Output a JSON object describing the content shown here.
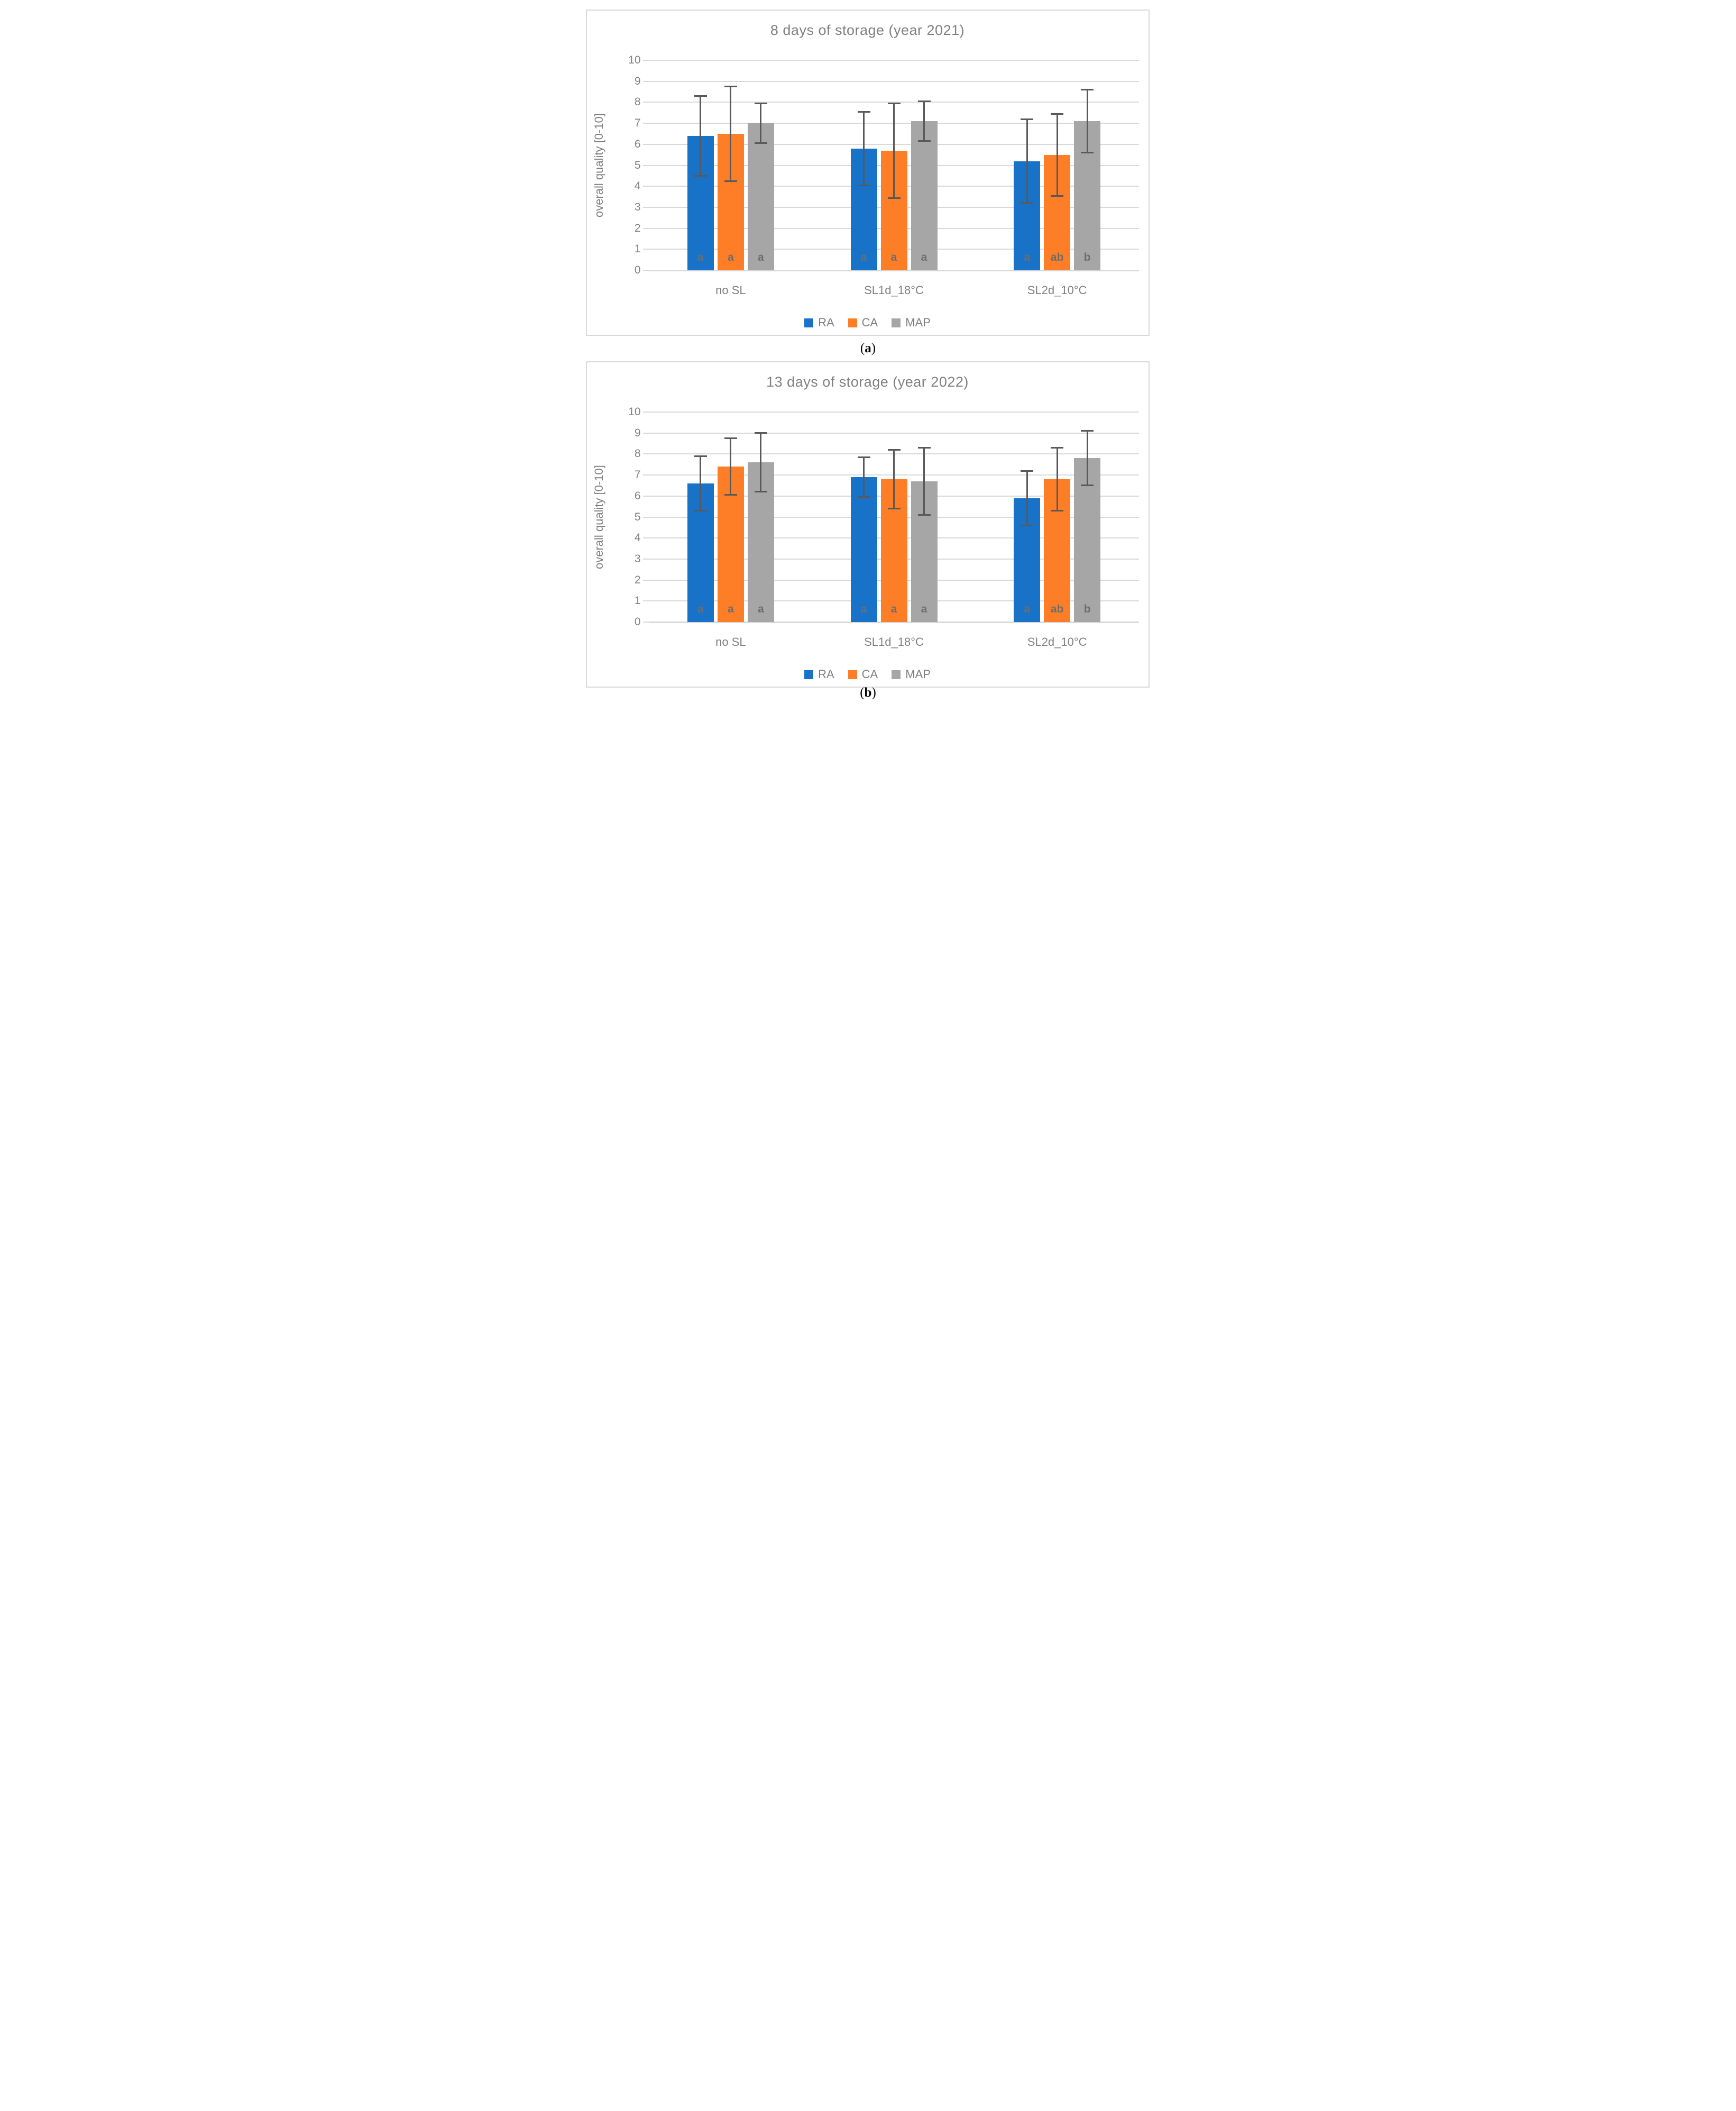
{
  "chart_data": [
    {
      "type": "bar",
      "title": "8 days of storage (year 2021)",
      "ylabel": "overall quality [0-10]",
      "ylim": [
        0,
        10
      ],
      "yticks": [
        0,
        1,
        2,
        3,
        4,
        5,
        6,
        7,
        8,
        9,
        10
      ],
      "grid": "horizontal",
      "legend_position": "bottom",
      "categories": [
        "no SL",
        "SL1d_18°C",
        "SL2d_10°C"
      ],
      "series": [
        {
          "name": "RA",
          "color": "#1873C8",
          "values": [
            6.4,
            5.8,
            5.2
          ],
          "errors": [
            1.9,
            1.75,
            2.0
          ],
          "letters": [
            "a",
            "a",
            "a"
          ]
        },
        {
          "name": "CA",
          "color": "#FD7E27",
          "values": [
            6.5,
            5.7,
            5.5
          ],
          "errors": [
            2.25,
            2.25,
            1.95
          ],
          "letters": [
            "a",
            "a",
            "ab"
          ]
        },
        {
          "name": "MAP",
          "color": "#A6A6A6",
          "values": [
            7.0,
            7.1,
            7.1
          ],
          "errors": [
            0.95,
            0.95,
            1.5
          ],
          "letters": [
            "a",
            "a",
            "b"
          ]
        }
      ],
      "caption_open": "(",
      "caption_letter": "a",
      "caption_close": ")"
    },
    {
      "type": "bar",
      "title": "13 days of storage (year 2022)",
      "ylabel": "overall quality [0-10]",
      "ylim": [
        0,
        10
      ],
      "yticks": [
        0,
        1,
        2,
        3,
        4,
        5,
        6,
        7,
        8,
        9,
        10
      ],
      "grid": "horizontal",
      "legend_position": "bottom",
      "categories": [
        "no SL",
        "SL1d_18°C",
        "SL2d_10°C"
      ],
      "series": [
        {
          "name": "RA",
          "color": "#1873C8",
          "values": [
            6.6,
            6.9,
            5.9
          ],
          "errors": [
            1.3,
            0.95,
            1.3
          ],
          "letters": [
            "a",
            "a",
            "a"
          ]
        },
        {
          "name": "CA",
          "color": "#FD7E27",
          "values": [
            7.4,
            6.8,
            6.8
          ],
          "errors": [
            1.35,
            1.4,
            1.5
          ],
          "letters": [
            "a",
            "a",
            "ab"
          ]
        },
        {
          "name": "MAP",
          "color": "#A6A6A6",
          "values": [
            7.6,
            6.7,
            7.8
          ],
          "errors": [
            1.4,
            1.6,
            1.3
          ],
          "letters": [
            "a",
            "a",
            "b"
          ]
        }
      ],
      "caption_open": "(",
      "caption_letter": "b",
      "caption_close": ")"
    }
  ],
  "style_colors": {
    "gridline": "#D9D9D9",
    "error_bar": "#595959",
    "axis_text": "#7F7F7F",
    "panel_border": "#D9D9D9"
  }
}
